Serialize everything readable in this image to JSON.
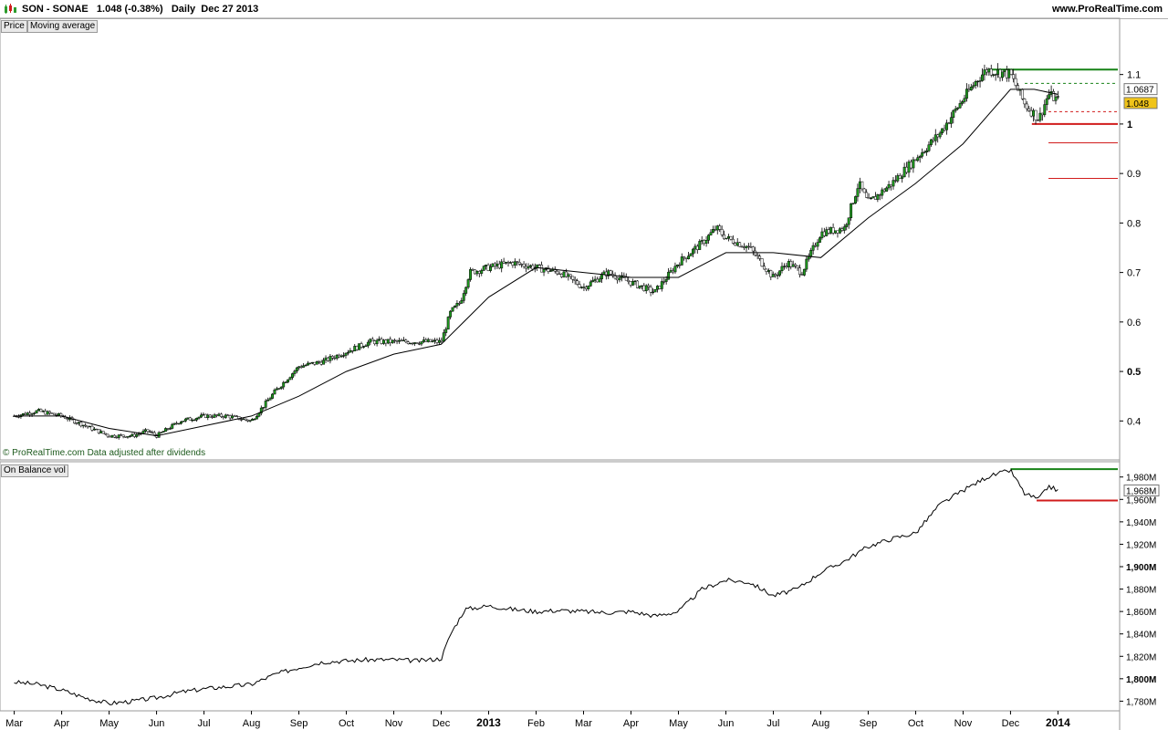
{
  "header": {
    "symbol": "SON - SONAE",
    "last": "1.048",
    "change": "(-0.38%)",
    "period": "Daily",
    "date": "Dec 27 2013",
    "brand": "www.ProRealTime.com"
  },
  "price_panel": {
    "tags": [
      "Price",
      "Moving average"
    ],
    "footnote": "© ProRealTime.com Data adjusted after dividends",
    "y_ticks": [
      {
        "label": "1.1",
        "v": 1.1,
        "bold": false
      },
      {
        "label": "1",
        "v": 1.0,
        "bold": true
      },
      {
        "label": "0.9",
        "v": 0.9,
        "bold": false
      },
      {
        "label": "0.8",
        "v": 0.8,
        "bold": false
      },
      {
        "label": "0.7",
        "v": 0.7,
        "bold": false
      },
      {
        "label": "0.6",
        "v": 0.6,
        "bold": false
      },
      {
        "label": "0.5",
        "v": 0.5,
        "bold": true
      },
      {
        "label": "0.4",
        "v": 0.4,
        "bold": false
      }
    ],
    "price_labels": [
      {
        "label": "1.0687",
        "v": 1.0687,
        "bg": "#ffffff"
      },
      {
        "label": "1.048",
        "v": 1.048,
        "bg": "#f0c419"
      }
    ]
  },
  "obv_panel": {
    "tags": [
      "On Balance vol"
    ],
    "y_ticks": [
      {
        "label": "1,980M",
        "v": 1980,
        "bold": false
      },
      {
        "label": "1,960M",
        "v": 1960,
        "bold": false
      },
      {
        "label": "1,940M",
        "v": 1940,
        "bold": false
      },
      {
        "label": "1,920M",
        "v": 1920,
        "bold": false
      },
      {
        "label": "1,900M",
        "v": 1900,
        "bold": true
      },
      {
        "label": "1,880M",
        "v": 1880,
        "bold": false
      },
      {
        "label": "1,860M",
        "v": 1860,
        "bold": false
      },
      {
        "label": "1,840M",
        "v": 1840,
        "bold": false
      },
      {
        "label": "1,820M",
        "v": 1820,
        "bold": false
      },
      {
        "label": "1,800M",
        "v": 1800,
        "bold": true
      },
      {
        "label": "1,780M",
        "v": 1780,
        "bold": false
      }
    ],
    "value_label": {
      "label": "1,968M",
      "v": 1968
    }
  },
  "x_axis": {
    "months": [
      {
        "label": "Mar",
        "m": 0,
        "bold": false
      },
      {
        "label": "Apr",
        "m": 1,
        "bold": false
      },
      {
        "label": "May",
        "m": 2,
        "bold": false
      },
      {
        "label": "Jun",
        "m": 3,
        "bold": false
      },
      {
        "label": "Jul",
        "m": 4,
        "bold": false
      },
      {
        "label": "Aug",
        "m": 5,
        "bold": false
      },
      {
        "label": "Sep",
        "m": 6,
        "bold": false
      },
      {
        "label": "Oct",
        "m": 7,
        "bold": false
      },
      {
        "label": "Nov",
        "m": 8,
        "bold": false
      },
      {
        "label": "Dec",
        "m": 9,
        "bold": false
      },
      {
        "label": "2013",
        "m": 10,
        "bold": true
      },
      {
        "label": "Feb",
        "m": 11,
        "bold": false
      },
      {
        "label": "Mar",
        "m": 12,
        "bold": false
      },
      {
        "label": "Apr",
        "m": 13,
        "bold": false
      },
      {
        "label": "May",
        "m": 14,
        "bold": false
      },
      {
        "label": "Jun",
        "m": 15,
        "bold": false
      },
      {
        "label": "Jul",
        "m": 16,
        "bold": false
      },
      {
        "label": "Aug",
        "m": 17,
        "bold": false
      },
      {
        "label": "Sep",
        "m": 18,
        "bold": false
      },
      {
        "label": "Oct",
        "m": 19,
        "bold": false
      },
      {
        "label": "Nov",
        "m": 20,
        "bold": false
      },
      {
        "label": "Dec",
        "m": 21,
        "bold": false
      },
      {
        "label": "2014",
        "m": 22,
        "bold": true
      }
    ]
  },
  "chart_data": {
    "type": "line",
    "instrument": "SONAE daily price with moving average and On Balance Volume",
    "x_unit": "months since Mar 2012",
    "price_series": [
      [
        0,
        0.41
      ],
      [
        0.5,
        0.42
      ],
      [
        1,
        0.41
      ],
      [
        1.5,
        0.39
      ],
      [
        2,
        0.37
      ],
      [
        2.5,
        0.37
      ],
      [
        2.8,
        0.38
      ],
      [
        3,
        0.37
      ],
      [
        3.5,
        0.4
      ],
      [
        4,
        0.41
      ],
      [
        4.5,
        0.41
      ],
      [
        5,
        0.4
      ],
      [
        5.5,
        0.46
      ],
      [
        6,
        0.51
      ],
      [
        6.5,
        0.52
      ],
      [
        7,
        0.54
      ],
      [
        7.5,
        0.56
      ],
      [
        8,
        0.56
      ],
      [
        8.5,
        0.56
      ],
      [
        9,
        0.56
      ],
      [
        9.2,
        0.62
      ],
      [
        9.4,
        0.64
      ],
      [
        9.6,
        0.7
      ],
      [
        10,
        0.71
      ],
      [
        10.5,
        0.72
      ],
      [
        11,
        0.71
      ],
      [
        11.5,
        0.7
      ],
      [
        12,
        0.67
      ],
      [
        12.5,
        0.7
      ],
      [
        13,
        0.68
      ],
      [
        13.5,
        0.66
      ],
      [
        14,
        0.72
      ],
      [
        14.5,
        0.76
      ],
      [
        14.8,
        0.79
      ],
      [
        15,
        0.77
      ],
      [
        15.5,
        0.75
      ],
      [
        16,
        0.69
      ],
      [
        16.3,
        0.72
      ],
      [
        16.6,
        0.7
      ],
      [
        17,
        0.78
      ],
      [
        17.5,
        0.79
      ],
      [
        17.8,
        0.88
      ],
      [
        18,
        0.84
      ],
      [
        18.5,
        0.88
      ],
      [
        19,
        0.93
      ],
      [
        19.5,
        0.98
      ],
      [
        20,
        1.05
      ],
      [
        20.3,
        1.09
      ],
      [
        20.5,
        1.11
      ],
      [
        21,
        1.1
      ],
      [
        21.3,
        1.04
      ],
      [
        21.6,
        1.01
      ],
      [
        21.8,
        1.06
      ],
      [
        22,
        1.048
      ]
    ],
    "moving_average": [
      [
        0,
        0.41
      ],
      [
        1,
        0.41
      ],
      [
        2,
        0.385
      ],
      [
        3,
        0.37
      ],
      [
        4,
        0.39
      ],
      [
        5,
        0.41
      ],
      [
        6,
        0.45
      ],
      [
        7,
        0.5
      ],
      [
        8,
        0.535
      ],
      [
        9,
        0.555
      ],
      [
        10,
        0.65
      ],
      [
        11,
        0.71
      ],
      [
        12,
        0.7
      ],
      [
        13,
        0.69
      ],
      [
        14,
        0.69
      ],
      [
        15,
        0.74
      ],
      [
        16,
        0.74
      ],
      [
        17,
        0.73
      ],
      [
        18,
        0.81
      ],
      [
        19,
        0.88
      ],
      [
        20,
        0.96
      ],
      [
        21,
        1.07
      ],
      [
        21.5,
        1.07
      ],
      [
        22,
        1.06
      ]
    ],
    "obv_series": [
      [
        0,
        1797
      ],
      [
        0.5,
        1795
      ],
      [
        1,
        1790
      ],
      [
        1.5,
        1783
      ],
      [
        2,
        1778
      ],
      [
        2.5,
        1780
      ],
      [
        3,
        1783
      ],
      [
        3.5,
        1788
      ],
      [
        4,
        1791
      ],
      [
        4.5,
        1793
      ],
      [
        5,
        1795
      ],
      [
        5.5,
        1804
      ],
      [
        6,
        1810
      ],
      [
        6.5,
        1815
      ],
      [
        7,
        1816
      ],
      [
        7.5,
        1817
      ],
      [
        8,
        1817
      ],
      [
        8.5,
        1816
      ],
      [
        9,
        1818
      ],
      [
        9.2,
        1840
      ],
      [
        9.5,
        1862
      ],
      [
        10,
        1865
      ],
      [
        10.5,
        1862
      ],
      [
        11,
        1860
      ],
      [
        11.5,
        1861
      ],
      [
        12,
        1860
      ],
      [
        12.5,
        1859
      ],
      [
        13,
        1860
      ],
      [
        13.5,
        1856
      ],
      [
        14,
        1860
      ],
      [
        14.5,
        1880
      ],
      [
        15,
        1888
      ],
      [
        15.5,
        1886
      ],
      [
        16,
        1874
      ],
      [
        16.5,
        1880
      ],
      [
        17,
        1895
      ],
      [
        17.5,
        1905
      ],
      [
        18,
        1918
      ],
      [
        18.5,
        1925
      ],
      [
        19,
        1930
      ],
      [
        19.5,
        1955
      ],
      [
        20,
        1968
      ],
      [
        20.5,
        1980
      ],
      [
        21,
        1986
      ],
      [
        21.3,
        1965
      ],
      [
        21.6,
        1960
      ],
      [
        21.8,
        1972
      ],
      [
        22,
        1968
      ]
    ],
    "price_levels": [
      {
        "v": 1.11,
        "from": 20.55,
        "color": "#178217",
        "style": "solid",
        "width": 2
      },
      {
        "v": 1.082,
        "from": 21.3,
        "color": "#178217",
        "style": "dashed",
        "width": 1
      },
      {
        "v": 1.025,
        "from": 21.8,
        "color": "#d11c1c",
        "style": "dashed",
        "width": 1
      },
      {
        "v": 1.0,
        "from": 21.45,
        "color": "#d11c1c",
        "style": "solid",
        "width": 2
      },
      {
        "v": 0.962,
        "from": 21.8,
        "color": "#d11c1c",
        "style": "solid",
        "width": 1
      },
      {
        "v": 0.89,
        "from": 21.8,
        "color": "#d11c1c",
        "style": "solid",
        "width": 1
      }
    ],
    "obv_levels": [
      {
        "v": 1987,
        "from": 21.0,
        "color": "#178217",
        "style": "solid",
        "width": 2
      },
      {
        "v": 1959,
        "from": 21.55,
        "color": "#d11c1c",
        "style": "solid",
        "width": 2
      }
    ],
    "price_ylim": [
      0.325,
      1.21
    ],
    "obv_ylim": [
      1773,
      1992
    ],
    "xlim": [
      -0.3,
      23.3
    ],
    "grid": false,
    "legend": "top-left"
  }
}
